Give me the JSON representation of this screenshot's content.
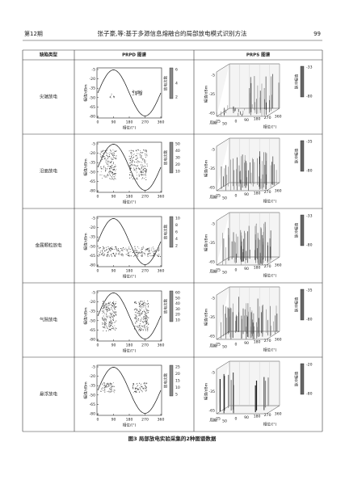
{
  "header": {
    "issue": "第12期",
    "title": "张子豪,等:基于多源信息熔融合的局部放电模式识别方法",
    "page": "99"
  },
  "table": {
    "columns": [
      "缺陷类型",
      "PRPD 图谱",
      "PRPS 图谱"
    ],
    "prpd": {
      "y_label": "幅值/dBm",
      "x_label": "相位/(°)",
      "colorbar_label": "放电次数",
      "yticks": [
        -5,
        -20,
        -35,
        -50,
        -65,
        -80
      ],
      "xticks": [
        0,
        90,
        180,
        270,
        360
      ]
    },
    "prps": {
      "y_label": "幅值/dBm",
      "x_label": "相位/(°)",
      "depth_label": "周期",
      "colorbar_label": "脉冲幅值",
      "zticks": [
        -5,
        -35,
        -65
      ],
      "xticks": [
        0,
        90,
        180,
        270,
        360
      ],
      "depth_ticks": [
        25,
        50
      ]
    },
    "rows": [
      {
        "label": "尖端放电",
        "prpd_colorbar": [
          6,
          4,
          2
        ],
        "prps_colorbar": [
          -33,
          -80
        ]
      },
      {
        "label": "沿面放电",
        "prpd_colorbar": [
          50,
          40,
          30,
          20,
          10
        ],
        "prps_colorbar": [
          -35,
          -80
        ]
      },
      {
        "label": "金属颗粒放电",
        "prpd_colorbar": [
          10,
          8,
          6,
          4,
          2
        ],
        "prps_colorbar": [
          -33,
          -80
        ]
      },
      {
        "label": "气隙放电",
        "prpd_colorbar": [
          60,
          50,
          40,
          30,
          20,
          10
        ],
        "prps_colorbar": [
          -35,
          -80
        ]
      },
      {
        "label": "悬浮放电",
        "prpd_colorbar": [
          25,
          20,
          15,
          10,
          5
        ],
        "prps_colorbar": [
          -20,
          -80
        ]
      }
    ]
  },
  "caption": "图3 局部放电实验采集的2种图谱数据"
}
